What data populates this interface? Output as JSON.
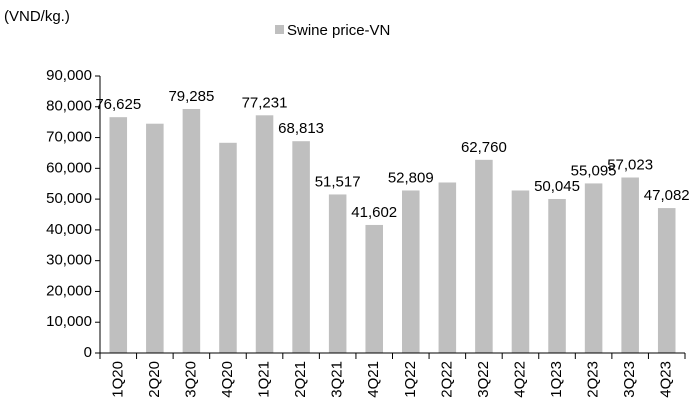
{
  "chart_data": {
    "type": "bar",
    "y_axis_label": "(VND/kg.)",
    "categories": [
      "1Q20",
      "2Q20",
      "3Q20",
      "4Q20",
      "1Q21",
      "2Q21",
      "3Q21",
      "4Q21",
      "1Q22",
      "2Q22",
      "3Q22",
      "4Q22",
      "1Q23",
      "2Q23",
      "3Q23",
      "4Q23"
    ],
    "series": [
      {
        "name": "Swine price-VN",
        "color": "#bfbfbf",
        "values": [
          76625,
          74500,
          79285,
          68300,
          77231,
          68813,
          51517,
          41602,
          52809,
          55400,
          62760,
          52800,
          50045,
          55095,
          57023,
          47082
        ],
        "value_labels": [
          "76,625",
          null,
          "79,285",
          null,
          "77,231",
          "68,813",
          "51,517",
          "41,602",
          "52,809",
          null,
          "62,760",
          null,
          "50,045",
          "55,095",
          "57,023",
          "47,082"
        ]
      }
    ],
    "ylim": [
      0,
      90000
    ],
    "yticks": [
      0,
      {
        "value": 10000,
        "label": "10,000"
      },
      {
        "value": 20000,
        "label": "20,000"
      },
      {
        "value": 30000,
        "label": "30,000"
      },
      {
        "value": 40000,
        "label": "40,000"
      },
      {
        "value": 50000,
        "label": "50,000"
      },
      {
        "value": 60000,
        "label": "60,000"
      },
      {
        "value": 70000,
        "label": "70,000"
      },
      {
        "value": 80000,
        "label": "80,000"
      },
      {
        "value": 90000,
        "label": "90,000"
      }
    ],
    "legend": "top"
  }
}
